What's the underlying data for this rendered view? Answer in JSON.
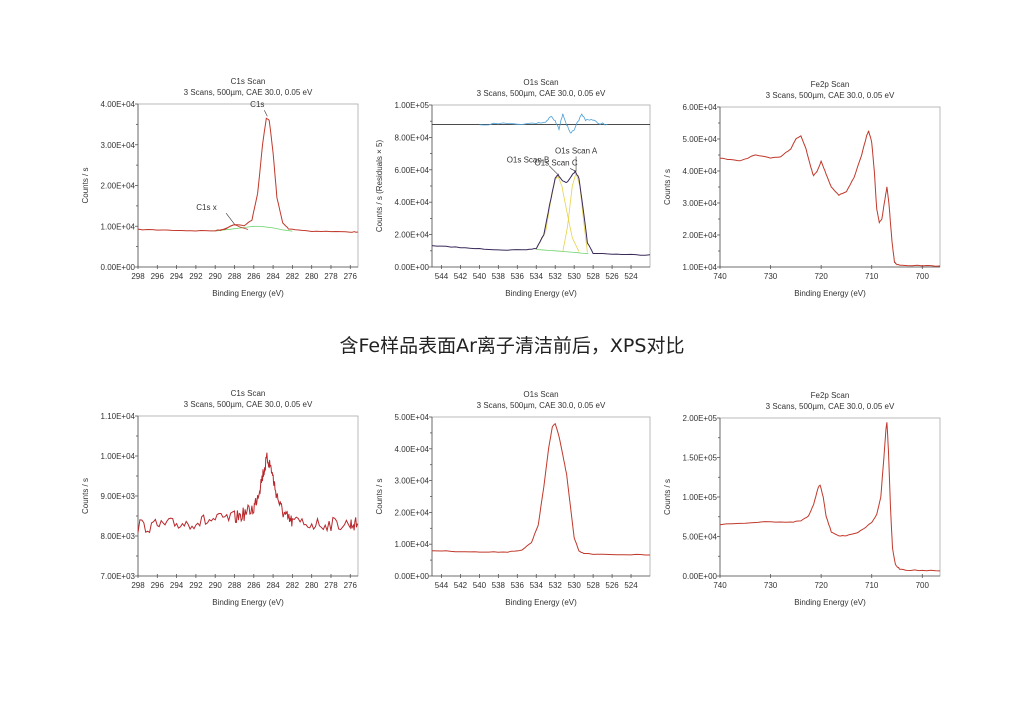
{
  "headline": "含Fe样品表面Ar离子清洁前后，XPS对比",
  "colors": {
    "envelope": "#c0392b",
    "fit": "#3a2a5a",
    "component_yellow": "#e8d24a",
    "background_green": "#6fd36f",
    "residuals": "#4a9fd8",
    "frame": "#888888"
  },
  "chart_data": [
    {
      "type": "line",
      "title": "C1s Scan",
      "subtitle": "3 Scans,  500µm,  CAE 30.0,  0.05 eV",
      "xlabel": "Binding Energy (eV)",
      "ylabel": "Counts / s",
      "xlim": [
        298,
        275.2
      ],
      "ylim": [
        0,
        40000
      ],
      "xticks": [
        298,
        296,
        294,
        292,
        290,
        288,
        286,
        284,
        282,
        280,
        278,
        276
      ],
      "yticks": [
        0,
        10000,
        20000,
        30000,
        40000
      ],
      "ytick_labels": [
        "0.00E+00",
        "1.00E+04",
        "2.00E+04",
        "3.00E+04",
        "4.00E+04"
      ],
      "series": [
        {
          "role": "background",
          "color": "#6fd36f",
          "x": [
            290,
            288,
            286,
            285,
            284,
            283,
            282
          ],
          "y": [
            8800,
            9400,
            10000,
            9900,
            9600,
            9100,
            8800
          ]
        },
        {
          "role": "component",
          "color": "#c0392b",
          "x": [
            289.5,
            288.6,
            288,
            287.4,
            286.6
          ],
          "y": [
            8900,
            9800,
            10400,
            9800,
            9200
          ]
        },
        {
          "role": "envelope",
          "color": "#c0392b",
          "x": [
            298,
            296,
            294,
            292,
            290,
            289,
            288,
            287,
            286.2,
            285.6,
            285.1,
            284.7,
            284.4,
            284,
            283.6,
            283,
            282.4,
            281,
            280,
            278,
            276,
            275.2
          ],
          "y": [
            9200,
            9100,
            9000,
            8900,
            8900,
            9300,
            10500,
            10200,
            11500,
            18000,
            30000,
            36500,
            36000,
            28000,
            17000,
            10800,
            9400,
            9000,
            8800,
            8700,
            8600,
            8600
          ]
        }
      ],
      "annotations": [
        {
          "text": "C1s",
          "x": 284.6,
          "y": 37000
        },
        {
          "text": "C1s x",
          "x": 288,
          "y": 10500
        }
      ]
    },
    {
      "type": "line",
      "title": "O1s Scan",
      "subtitle": "3 Scans,  500µm,  CAE 30.0,  0.05 eV",
      "xlabel": "Binding Energy (eV)",
      "ylabel": "Counts / s  (Residuals × 5)",
      "xlim": [
        545,
        522
      ],
      "ylim": [
        0,
        100000
      ],
      "xticks": [
        544,
        542,
        540,
        538,
        536,
        534,
        532,
        530,
        528,
        526,
        524
      ],
      "yticks": [
        0,
        20000,
        40000,
        60000,
        80000,
        100000
      ],
      "ytick_labels": [
        "0.00E+00",
        "2.00E+04",
        "4.00E+04",
        "6.00E+04",
        "8.00E+04",
        "1.00E+05"
      ],
      "residual_baseline": 88000,
      "series": [
        {
          "role": "background",
          "color": "#6fd36f",
          "x": [
            534,
            532,
            530,
            528.5
          ],
          "y": [
            10800,
            10000,
            9000,
            8200
          ]
        },
        {
          "role": "component",
          "color": "#e8d24a",
          "x": [
            534,
            533,
            532.5,
            532,
            531.7,
            531.3,
            530.8,
            530.2,
            529.5
          ],
          "y": [
            11000,
            22000,
            40000,
            54000,
            56000,
            50000,
            35000,
            18000,
            9500
          ]
        },
        {
          "role": "component",
          "color": "#e8d24a",
          "x": [
            531.2,
            530.7,
            530.2,
            529.8,
            529.4,
            529,
            528.6
          ],
          "y": [
            9500,
            25000,
            50000,
            58000,
            50000,
            28000,
            9000
          ]
        },
        {
          "role": "envelope",
          "color": "#3a2a5a",
          "x": [
            545,
            543,
            541,
            539,
            537,
            535,
            534,
            533.2,
            532.6,
            532,
            531.7,
            531.2,
            530.8,
            530.3,
            529.9,
            529.5,
            529.1,
            528.6,
            528,
            526,
            524,
            522
          ],
          "y": [
            13000,
            12500,
            11500,
            11000,
            10500,
            10500,
            11500,
            20000,
            38000,
            55000,
            57000,
            53000,
            52000,
            56000,
            59000,
            55000,
            38000,
            15000,
            8500,
            8000,
            7600,
            7500
          ]
        },
        {
          "role": "residuals",
          "color": "#4a9fd8",
          "x": [
            540,
            538,
            536,
            534,
            533,
            532.5,
            532,
            531.6,
            531.2,
            530.8,
            530.4,
            530,
            529.6,
            529.2,
            528.8,
            528.2,
            527.5,
            526.5
          ],
          "y": [
            88000,
            88500,
            88500,
            88500,
            89500,
            93000,
            90000,
            85000,
            95000,
            88000,
            83000,
            84000,
            90000,
            94000,
            91000,
            91000,
            89000,
            88000
          ]
        }
      ],
      "annotations": [
        {
          "text": "O1s Scan A",
          "x": 529.8,
          "y": 59000
        },
        {
          "text": "O1s Scan B",
          "x": 531.7,
          "y": 57000
        },
        {
          "text": "O1s Scan C",
          "x": 529.8,
          "y": 59000
        }
      ]
    },
    {
      "type": "line",
      "title": "Fe2p Scan",
      "subtitle": "3 Scans,  500µm,  CAE 30.0,  0.05 eV",
      "xlabel": "Binding Energy (eV)",
      "ylabel": "Counts / s",
      "xlim": [
        740,
        696.5
      ],
      "ylim": [
        10000,
        60000
      ],
      "xticks": [
        740,
        730,
        720,
        710,
        700
      ],
      "yticks": [
        10000,
        20000,
        30000,
        40000,
        50000,
        60000
      ],
      "ytick_labels": [
        "1.00E+04",
        "2.00E+04",
        "3.00E+04",
        "4.00E+04",
        "5.00E+04",
        "6.00E+04"
      ],
      "series": [
        {
          "role": "envelope",
          "color": "#c0392b",
          "x": [
            740,
            738,
            736,
            733,
            730,
            728,
            726,
            725,
            724,
            723,
            722,
            721.5,
            720.8,
            720,
            719,
            718,
            716.5,
            715,
            713.5,
            712,
            711,
            710.6,
            710,
            709.5,
            709,
            708.5,
            708,
            707.5,
            707,
            706.6,
            706,
            705.5,
            705,
            704,
            700,
            696.5
          ],
          "y": [
            44000,
            43500,
            43200,
            45000,
            44000,
            44500,
            47000,
            50000,
            51000,
            47000,
            41000,
            38500,
            40000,
            43000,
            39000,
            35000,
            32500,
            33500,
            38000,
            45000,
            51000,
            52500,
            49000,
            40000,
            28000,
            24000,
            25000,
            30000,
            35000,
            30000,
            18000,
            11500,
            10800,
            10600,
            10400,
            10300
          ]
        }
      ]
    },
    {
      "type": "line",
      "title": "C1s Scan",
      "subtitle": "3 Scans,  500µm,  CAE 30.0,  0.05 eV",
      "xlabel": "Binding Energy (eV)",
      "ylabel": "Counts / s",
      "xlim": [
        298,
        275.2
      ],
      "ylim": [
        7000,
        11000
      ],
      "xticks": [
        298,
        296,
        294,
        292,
        290,
        288,
        286,
        284,
        282,
        280,
        278,
        276
      ],
      "yticks": [
        7000,
        8000,
        9000,
        10000,
        11000
      ],
      "ytick_labels": [
        "7.00E+03",
        "8.00E+03",
        "9.00E+03",
        "1.00E+04",
        "1.10E+04"
      ],
      "series": [
        {
          "role": "envelope",
          "color": "#b8272b",
          "x": [
            298,
            296,
            294,
            292,
            290,
            288,
            287,
            286,
            285.5,
            285,
            284.6,
            284.2,
            283.8,
            283.2,
            282.6,
            282,
            280,
            278,
            276,
            275.2
          ],
          "y": [
            8250,
            8250,
            8300,
            8350,
            8400,
            8450,
            8550,
            8700,
            9100,
            9600,
            9950,
            9700,
            9200,
            8700,
            8450,
            8350,
            8300,
            8300,
            8300,
            8300
          ]
        }
      ]
    },
    {
      "type": "line",
      "title": "O1s Scan",
      "subtitle": "3 Scans,  500µm,  CAE 30.0,  0.05 eV",
      "xlabel": "Binding Energy (eV)",
      "ylabel": "Counts / s",
      "xlim": [
        545,
        522
      ],
      "ylim": [
        0,
        50000
      ],
      "xticks": [
        544,
        542,
        540,
        538,
        536,
        534,
        532,
        530,
        528,
        526,
        524
      ],
      "yticks": [
        0,
        10000,
        20000,
        30000,
        40000,
        50000
      ],
      "ytick_labels": [
        "0.00E+00",
        "1.00E+04",
        "2.00E+04",
        "3.00E+04",
        "4.00E+04",
        "5.00E+04"
      ],
      "series": [
        {
          "role": "envelope",
          "color": "#c0392b",
          "x": [
            545,
            543,
            541,
            539,
            537,
            535.5,
            534.5,
            533.8,
            533.2,
            532.7,
            532.3,
            532,
            531.6,
            531.2,
            530.8,
            530.4,
            530,
            529.5,
            529,
            527,
            524,
            522
          ],
          "y": [
            8000,
            7800,
            7600,
            7500,
            7600,
            8200,
            10500,
            16000,
            28000,
            40000,
            47000,
            48000,
            44000,
            38000,
            32000,
            22000,
            12000,
            8000,
            7000,
            6800,
            6700,
            6600
          ]
        }
      ]
    },
    {
      "type": "line",
      "title": "Fe2p Scan",
      "subtitle": "3 Scans,  500µm,  CAE 30.0,  0.05 eV",
      "xlabel": "Binding Energy (eV)",
      "ylabel": "Counts / s",
      "xlim": [
        740,
        696.5
      ],
      "ylim": [
        0,
        200000
      ],
      "xticks": [
        740,
        730,
        720,
        710,
        700
      ],
      "yticks": [
        0,
        50000,
        100000,
        150000,
        200000
      ],
      "ytick_labels": [
        "0.00E+00",
        "5.00E+04",
        "1.00E+05",
        "1.50E+05",
        "2.00E+05"
      ],
      "series": [
        {
          "role": "envelope",
          "color": "#c0392b",
          "x": [
            740,
            735,
            730,
            726,
            724,
            722.5,
            721.5,
            720.6,
            720.2,
            719.6,
            719,
            718,
            716.5,
            715,
            713,
            711.5,
            710,
            709,
            708.2,
            707.6,
            707.2,
            707,
            706.7,
            706.3,
            705.9,
            705.3,
            704.5,
            703,
            700,
            696.5
          ],
          "y": [
            65000,
            67000,
            69000,
            68000,
            70000,
            76000,
            90000,
            112000,
            115000,
            100000,
            75000,
            56000,
            51000,
            51000,
            54000,
            60000,
            68000,
            78000,
            100000,
            150000,
            185000,
            195000,
            160000,
            90000,
            35000,
            14000,
            9000,
            7500,
            7000,
            6500
          ]
        }
      ]
    }
  ]
}
